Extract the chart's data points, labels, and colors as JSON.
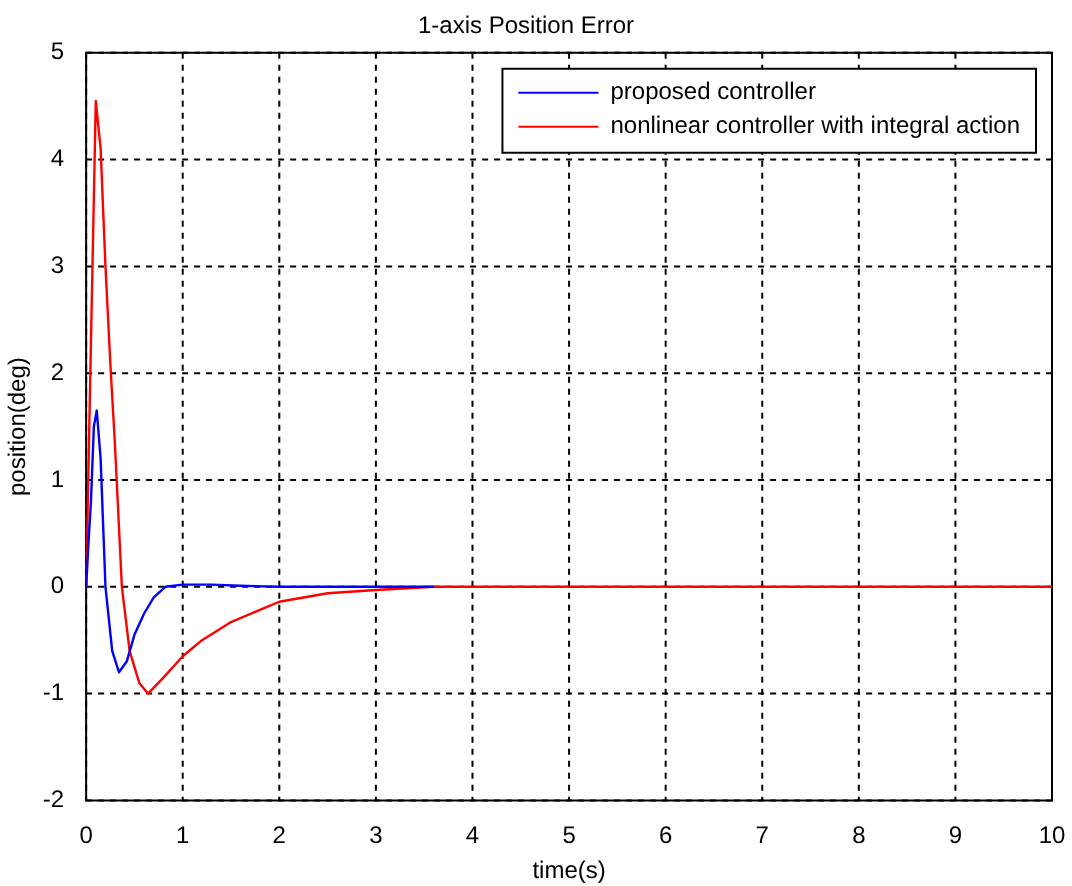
{
  "chart_data": {
    "type": "line",
    "title": "1-axis Position Error",
    "xlabel": "time(s)",
    "ylabel": "position(deg)",
    "xlim": [
      0,
      10
    ],
    "ylim": [
      -2,
      5
    ],
    "xticks": [
      0,
      1,
      2,
      3,
      4,
      5,
      6,
      7,
      8,
      9,
      10
    ],
    "yticks": [
      -2,
      -1,
      0,
      1,
      2,
      3,
      4,
      5
    ],
    "grid": true,
    "legend": "top right",
    "marker": "none",
    "line_style": "solid",
    "series": [
      {
        "name": "proposed controller",
        "color": "#0000ff",
        "x": [
          0,
          0.03,
          0.05,
          0.08,
          0.11,
          0.15,
          0.2,
          0.27,
          0.34,
          0.42,
          0.5,
          0.6,
          0.7,
          0.82,
          1,
          1.3,
          1.6,
          2,
          3,
          3.6
        ],
        "values": [
          0,
          0.5,
          0.8,
          1.5,
          1.65,
          1.2,
          0,
          -0.6,
          -0.8,
          -0.7,
          -0.45,
          -0.25,
          -0.1,
          0,
          0.02,
          0.02,
          0.01,
          0,
          0,
          0
        ]
      },
      {
        "name": "nonlinear controller with integral action",
        "color": "#ff0000",
        "x": [
          0,
          0.05,
          0.1,
          0.15,
          0.2,
          0.25,
          0.3,
          0.37,
          0.45,
          0.55,
          0.64,
          0.8,
          1,
          1.2,
          1.5,
          2,
          2.5,
          3,
          3.6,
          10
        ],
        "values": [
          0,
          2.3,
          4.55,
          4.1,
          3.0,
          2.1,
          1.3,
          0,
          -0.6,
          -0.9,
          -1,
          -0.85,
          -0.65,
          -0.5,
          -0.33,
          -0.14,
          -0.06,
          -0.03,
          0,
          0
        ]
      }
    ]
  }
}
